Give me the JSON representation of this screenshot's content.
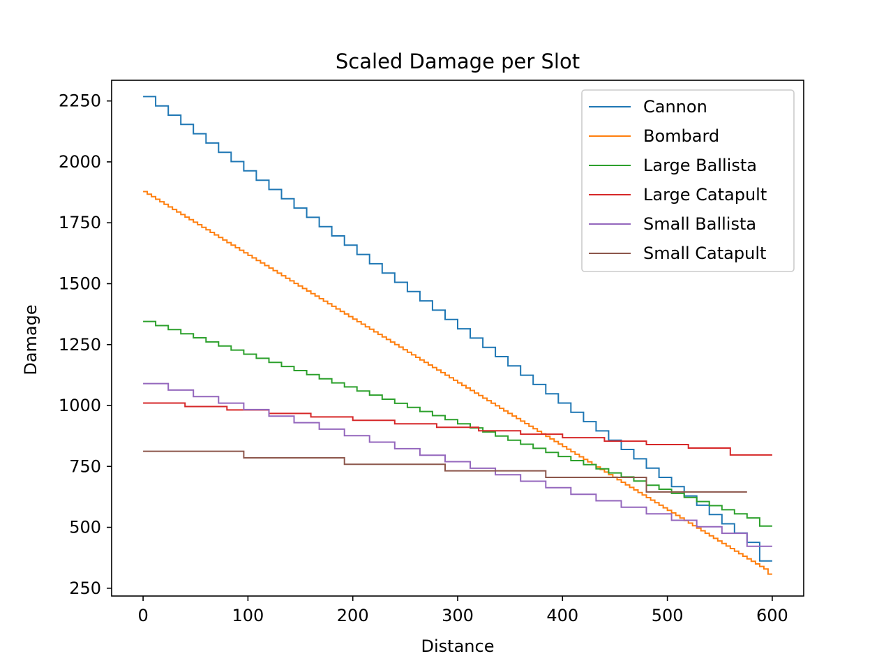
{
  "chart_data": {
    "type": "line",
    "title": "Scaled Damage per Slot",
    "xlabel": "Distance",
    "ylabel": "Damage",
    "xlim": [
      -30,
      630
    ],
    "ylim": [
      218,
      2335
    ],
    "xticks": [
      0,
      100,
      200,
      300,
      400,
      500,
      600
    ],
    "yticks": [
      250,
      500,
      750,
      1000,
      1250,
      1500,
      1750,
      2000,
      2250
    ],
    "grid": false,
    "legend": "top-right",
    "series": [
      {
        "name": "Cannon",
        "color": "#1f77b4",
        "step": 12,
        "points": [
          [
            0,
            2268
          ],
          [
            600,
            362
          ]
        ]
      },
      {
        "name": "Bombard",
        "color": "#ff7f0e",
        "step": 4,
        "points": [
          [
            0,
            1878
          ],
          [
            600,
            308
          ]
        ]
      },
      {
        "name": "Large Ballista",
        "color": "#2ca02c",
        "step": 12,
        "points": [
          [
            0,
            1345
          ],
          [
            600,
            505
          ]
        ]
      },
      {
        "name": "Large Catapult",
        "color": "#d62728",
        "step": 40,
        "points": [
          [
            0,
            1010
          ],
          [
            600,
            797
          ]
        ]
      },
      {
        "name": "Small Ballista",
        "color": "#9467bd",
        "step": 24,
        "points": [
          [
            0,
            1090
          ],
          [
            600,
            422
          ]
        ]
      },
      {
        "name": "Small Catapult",
        "color": "#8c564b",
        "step": 96,
        "points": [
          [
            0,
            812
          ],
          [
            600,
            645
          ]
        ]
      }
    ]
  }
}
